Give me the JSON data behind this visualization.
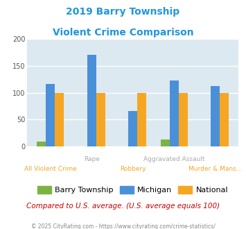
{
  "title_line1": "2019 Barry Township",
  "title_line2": "Violent Crime Comparison",
  "categories": [
    "All Violent Crime",
    "Rape",
    "Robbery",
    "Aggravated Assault",
    "Murder & Mans..."
  ],
  "x_labels_top": [
    "",
    "Rape",
    "",
    "Aggravated Assault",
    ""
  ],
  "x_labels_bottom": [
    "All Violent Crime",
    "",
    "Robbery",
    "",
    "Murder & Mans..."
  ],
  "barry_values": [
    9,
    0,
    0,
    13,
    0
  ],
  "michigan_values": [
    116,
    170,
    66,
    123,
    112
  ],
  "national_values": [
    100,
    100,
    100,
    100,
    100
  ],
  "barry_color": "#7cb442",
  "michigan_color": "#4a90d9",
  "national_color": "#f5a623",
  "ylim": [
    0,
    200
  ],
  "yticks": [
    0,
    50,
    100,
    150,
    200
  ],
  "background_color": "#dce9f0",
  "title_color": "#2196e0",
  "xlabel_color_gray": "#aaaaaa",
  "xlabel_color_orange": "#f5a623",
  "footer_text": "Compared to U.S. average. (U.S. average equals 100)",
  "footer_color": "#cc0000",
  "copyright_text": "© 2025 CityRating.com - https://www.cityrating.com/crime-statistics/",
  "copyright_color": "#888888",
  "legend_labels": [
    "Barry Township",
    "Michigan",
    "National"
  ]
}
